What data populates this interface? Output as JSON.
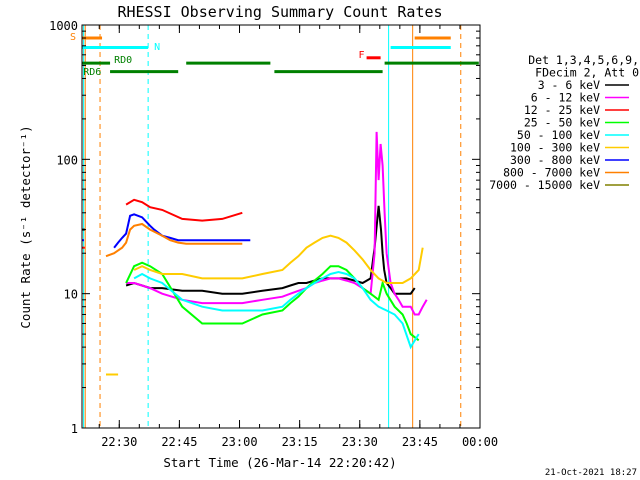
{
  "chart_data": {
    "type": "line",
    "title": "RHESSI Observing Summary Count Rates",
    "xlabel": "Start Time (26-Mar-14 22:20:42)",
    "ylabel": "Count Rate (s⁻¹ detector⁻¹)",
    "yscale": "log",
    "ylim": [
      1,
      1000
    ],
    "x_unit": "minutes since 22:20:42",
    "xlim": [
      0,
      99.3
    ],
    "x_ticks": [
      {
        "label": "22:30",
        "x": 9.3
      },
      {
        "label": "22:45",
        "x": 24.3
      },
      {
        "label": "23:00",
        "x": 39.3
      },
      {
        "label": "23:15",
        "x": 54.3
      },
      {
        "label": "23:30",
        "x": 69.3
      },
      {
        "label": "23:45",
        "x": 84.3
      },
      {
        "label": "00:00",
        "x": 99.3
      }
    ],
    "y_ticks": [
      {
        "label": "1",
        "y": 1
      },
      {
        "label": "10",
        "y": 10
      },
      {
        "label": "100",
        "y": 100
      },
      {
        "label": "1000",
        "y": 1000
      }
    ],
    "legend_header": [
      "Det 1,3,4,5,6,9,",
      "FDecim 2, Att 0"
    ],
    "series": [
      {
        "name": "3 - 6 keV",
        "color": "#000000",
        "x": [
          0,
          0.7,
          4,
          6,
          8,
          11,
          13,
          15,
          17,
          20,
          25,
          30,
          35,
          40,
          45,
          50,
          52,
          54,
          56,
          58,
          60,
          62,
          64,
          66,
          68,
          70,
          72,
          73,
          74,
          74.6,
          75,
          75.4,
          76,
          77,
          78,
          79,
          80,
          81,
          82,
          83,
          84,
          85,
          86,
          86.5
        ],
        "y": [
          30,
          30,
          null,
          null,
          null,
          11.5,
          12,
          11.5,
          11,
          11,
          10.5,
          10.5,
          10,
          10,
          10.5,
          11,
          11.5,
          12,
          12,
          12.5,
          13,
          13,
          13,
          13,
          12.5,
          12,
          13,
          22,
          45,
          30,
          20,
          15,
          12,
          11,
          10,
          10,
          10,
          10,
          10,
          11,
          null,
          null,
          null,
          null
        ]
      },
      {
        "name": "6 - 12 keV",
        "color": "#ff00ff",
        "x": [
          0,
          0.7,
          4,
          6,
          8,
          11,
          13,
          15,
          17,
          20,
          25,
          30,
          35,
          40,
          45,
          50,
          52,
          54,
          56,
          58,
          60,
          62,
          64,
          66,
          68,
          70,
          72,
          73,
          73.5,
          74,
          74.5,
          75,
          75.5,
          76,
          77,
          78,
          79,
          80,
          81,
          82,
          83,
          84,
          85,
          86,
          86.5
        ],
        "y": [
          null,
          null,
          null,
          null,
          null,
          12,
          12,
          11.5,
          11,
          10,
          9,
          8.5,
          8.5,
          8.5,
          9,
          9.5,
          10,
          10.5,
          11,
          12,
          12.5,
          13,
          13,
          12.5,
          12,
          11,
          10,
          20,
          160,
          70,
          130,
          90,
          40,
          20,
          12,
          10,
          9,
          8,
          8,
          8,
          7,
          7,
          8,
          9,
          null
        ]
      },
      {
        "name": "12 - 25 keV",
        "color": "#ff0000",
        "x": [
          0,
          0.7,
          2,
          4,
          6,
          8,
          9,
          11,
          13,
          15,
          17,
          20,
          25,
          30,
          35,
          40,
          45,
          50,
          52,
          54,
          56,
          58,
          60,
          62,
          64,
          66,
          68,
          70,
          72,
          74,
          75,
          76,
          77,
          78,
          79,
          80,
          81,
          82,
          83,
          84,
          85,
          86,
          86.5
        ],
        "y": [
          22,
          22,
          null,
          null,
          null,
          null,
          null,
          46,
          50,
          48,
          44,
          42,
          36,
          35,
          36,
          40,
          null,
          null,
          null,
          null,
          null,
          null,
          null,
          null,
          null,
          null,
          null,
          null,
          null,
          null,
          null,
          null,
          null,
          null,
          null,
          null,
          null,
          null,
          null,
          null,
          null,
          null,
          null
        ]
      },
      {
        "name": "25 - 50 keV",
        "color": "#00ff00",
        "x": [
          0,
          5,
          7,
          9,
          11,
          13,
          15,
          17,
          20,
          25,
          30,
          35,
          40,
          45,
          50,
          52,
          54,
          56,
          58,
          60,
          62,
          64,
          66,
          68,
          70,
          72,
          74,
          75,
          76,
          78,
          80,
          81,
          82,
          84,
          86
        ],
        "y": [
          null,
          null,
          null,
          null,
          12,
          16,
          17,
          16,
          14,
          8,
          6,
          6,
          6,
          7,
          7.5,
          8.5,
          9.5,
          11,
          12.5,
          14,
          16,
          16,
          15,
          13,
          11,
          10,
          9,
          12,
          10,
          8,
          7,
          6,
          5,
          4.5,
          null
        ]
      },
      {
        "name": "50 - 100 keV",
        "color": "#00ffff",
        "x": [
          0,
          5,
          7,
          9,
          11,
          13,
          15,
          17,
          20,
          25,
          30,
          35,
          40,
          45,
          50,
          52,
          54,
          56,
          58,
          60,
          62,
          64,
          66,
          68,
          70,
          72,
          74,
          76,
          78,
          80,
          82,
          84,
          86
        ],
        "y": [
          4.5,
          null,
          null,
          null,
          null,
          13,
          14,
          13,
          12,
          9,
          8,
          7.5,
          7.5,
          7.5,
          8,
          9,
          10,
          11,
          12,
          13,
          14,
          14.5,
          14,
          13,
          11,
          9,
          8,
          7.5,
          7,
          6,
          4,
          5,
          null
        ]
      },
      {
        "name": "100 - 300 keV",
        "color": "#ffcc00",
        "x": [
          0,
          5,
          6,
          7,
          8,
          9,
          11,
          13,
          15,
          17,
          20,
          25,
          30,
          35,
          40,
          45,
          50,
          52,
          54,
          56,
          58,
          60,
          62,
          64,
          66,
          68,
          70,
          72,
          74,
          76,
          78,
          80,
          82,
          84,
          85,
          86
        ],
        "y": [
          null,
          null,
          2.5,
          2.5,
          2.5,
          2.5,
          null,
          15,
          16,
          15,
          14,
          14,
          13,
          13,
          13,
          14,
          15,
          17,
          19,
          22,
          24,
          26,
          27,
          26,
          24,
          21,
          18,
          15,
          13,
          12,
          12,
          12,
          13,
          15,
          22,
          null
        ]
      },
      {
        "name": "300 - 800 keV",
        "color": "#0000ff",
        "x": [
          0,
          0.5,
          3,
          6,
          8,
          9,
          10,
          11,
          12,
          13,
          15,
          17,
          18,
          20,
          22,
          24,
          26,
          28,
          30,
          32,
          34,
          36,
          38,
          40,
          42,
          44,
          46,
          48,
          50,
          52,
          54,
          56,
          58,
          60,
          62,
          64,
          66,
          68,
          70,
          72,
          74,
          76,
          78,
          80,
          82,
          84,
          86,
          86.5
        ],
        "y": [
          25,
          25,
          null,
          null,
          22,
          24,
          26,
          28,
          38,
          39,
          37,
          32,
          30,
          27,
          26,
          25,
          25,
          25,
          25,
          25,
          25,
          25,
          25,
          25,
          25,
          null,
          null,
          null,
          null,
          null,
          null,
          null,
          null,
          null,
          null,
          null,
          null,
          null,
          null,
          null,
          null,
          null,
          null,
          null,
          null,
          null,
          null,
          null
        ]
      },
      {
        "name": "800 - 7000 keV",
        "color": "#ff8000",
        "x": [
          0,
          5,
          6,
          8,
          9,
          10,
          11,
          12,
          13,
          15,
          17,
          18,
          20,
          22,
          24,
          26,
          28,
          30,
          32,
          34,
          36,
          38,
          40,
          42,
          44,
          46,
          48,
          50,
          52,
          54,
          56,
          58,
          60,
          62,
          64,
          66,
          68,
          70,
          72,
          74,
          76,
          78,
          80,
          82,
          84,
          86
        ],
        "y": [
          null,
          null,
          19,
          20,
          21,
          22,
          24,
          30,
          32,
          33,
          30,
          29,
          27,
          25,
          24,
          23.5,
          23.5,
          23.5,
          23.5,
          23.5,
          23.5,
          23.5,
          23.5,
          null,
          null,
          null,
          null,
          null,
          null,
          null,
          null,
          null,
          null,
          null,
          null,
          null,
          null,
          null,
          null,
          null,
          null,
          null,
          null,
          null,
          null,
          null
        ]
      },
      {
        "name": "7000 - 15000 keV",
        "color": "#808000",
        "x": [],
        "y": []
      }
    ],
    "annotations": [
      {
        "text": "S",
        "color": "#ff8000"
      },
      {
        "text": "N",
        "color": "#00ffff"
      },
      {
        "text": "RD0",
        "color": "#008000"
      },
      {
        "text": "RD6",
        "color": "#008000"
      },
      {
        "text": "F",
        "color": "#ff0000"
      }
    ],
    "grid": false
  },
  "timestamp": "21-Oct-2021 18:27"
}
